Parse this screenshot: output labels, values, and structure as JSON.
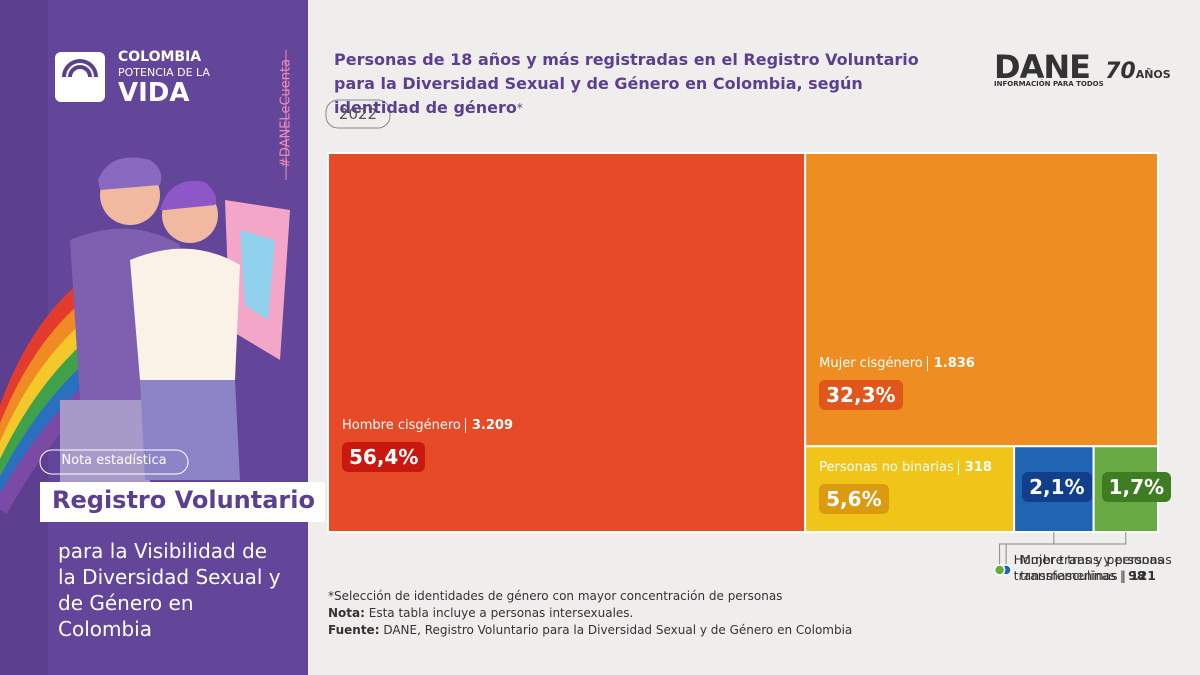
{
  "brand": {
    "line1": "COLOMBIA",
    "line2": "POTENCIA DE LA",
    "line3": "VIDA"
  },
  "hashtag": "#DANELeCuenta",
  "note_tag": "Nota estadística",
  "headline": "Registro Voluntario",
  "subheadline": "para la Visibilidad de la Diversidad Sexual y de Género en Colombia",
  "dane": {
    "name": "DANE",
    "tagline": "INFORMACIÓN PARA TODOS",
    "years": "70",
    "years_word": "AÑOS"
  },
  "year": "2022",
  "footnotes": {
    "selection": "*Selección de identidades de género con mayor concentración de personas",
    "note_label": "Nota:",
    "note_text": " Esta tabla incluye a personas intersexuales.",
    "source_label": "Fuente:",
    "source_text": " DANE, Registro Voluntario para la Diversidad Sexual y de Género en Colombia"
  },
  "chart_data": {
    "type": "treemap",
    "title": "Personas de 18 años y más registradas en el Registro Voluntario para la Diversidad Sexual y de Género en Colombia, según identidad de género",
    "title_mark": "*",
    "categories": [
      "Hombre cisgénero",
      "Mujer cisgénero",
      "Personas no binarias",
      "Mujer trans y personas transfemeninas",
      "Hombre trans y personas transmasculinas"
    ],
    "values": [
      3209,
      1836,
      318,
      121,
      98
    ],
    "value_labels": [
      "3.209",
      "1.836",
      "318",
      "121",
      "98"
    ],
    "percentages": [
      56.4,
      32.3,
      5.6,
      2.1,
      1.7
    ],
    "percentage_labels": [
      "56,4%",
      "32,3%",
      "5,6%",
      "2,1%",
      "1,7%"
    ],
    "colors": [
      "#e64a26",
      "#ee8e22",
      "#f0c419",
      "#1f65b3",
      "#6aaa45"
    ],
    "badge_colors": [
      "#c8180f",
      "#e0561b",
      "#dc9a10",
      "#123f8c",
      "#3f7d23"
    ]
  }
}
